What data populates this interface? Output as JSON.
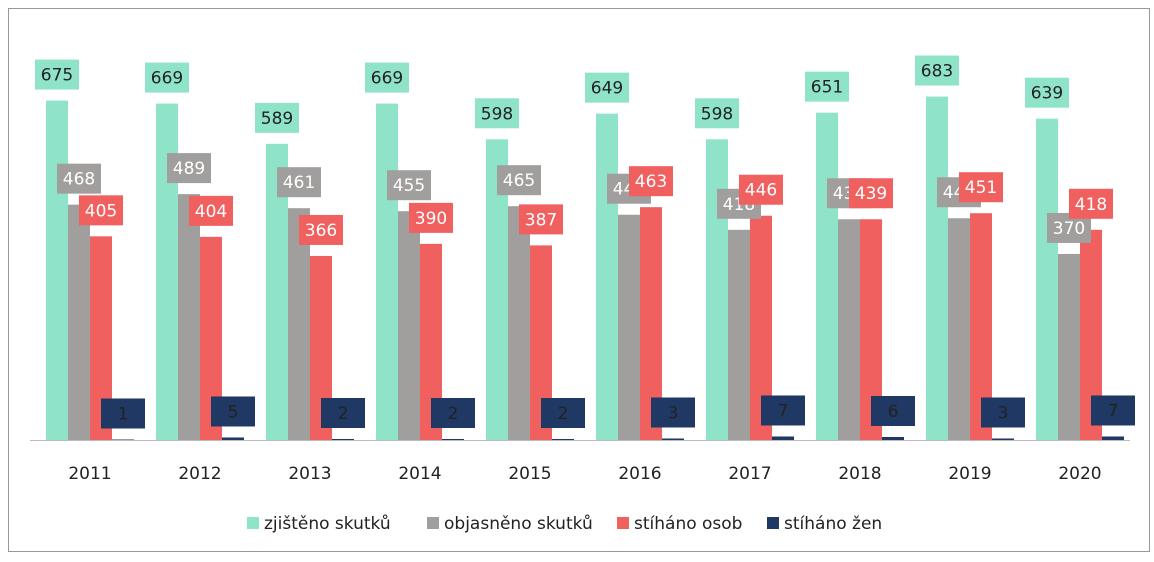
{
  "chart_data": {
    "type": "bar",
    "categories": [
      "2011",
      "2012",
      "2013",
      "2014",
      "2015",
      "2016",
      "2017",
      "2018",
      "2019",
      "2020"
    ],
    "series": [
      {
        "name": "zjištěno skutků",
        "color": "#8fe3c8",
        "values": [
          675,
          669,
          589,
          669,
          598,
          649,
          598,
          651,
          683,
          639
        ]
      },
      {
        "name": "objasněno skutků",
        "color": "#a19e9e",
        "values": [
          468,
          489,
          461,
          455,
          465,
          448,
          418,
          439,
          441,
          370
        ]
      },
      {
        "name": "stíháno osob",
        "color": "#ef605f",
        "values": [
          405,
          404,
          366,
          390,
          387,
          463,
          446,
          439,
          451,
          418
        ]
      },
      {
        "name": "stíháno žen",
        "color": "#1f3864",
        "values": [
          1,
          5,
          2,
          2,
          2,
          3,
          7,
          6,
          3,
          7
        ]
      }
    ],
    "ylim": [
      0,
      700
    ],
    "legend": "bottom"
  }
}
